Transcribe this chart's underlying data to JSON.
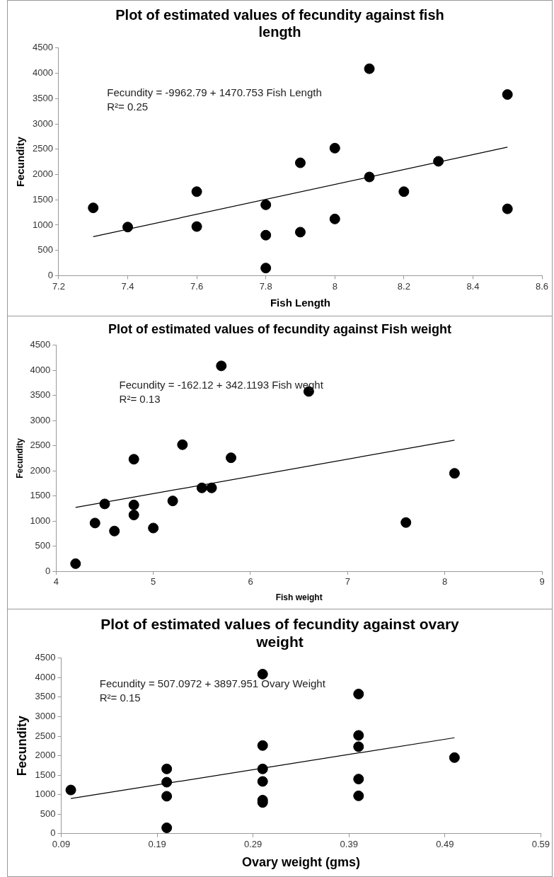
{
  "chart_data": [
    {
      "type": "scatter",
      "title": "Plot of estimated values of fecundity against fish length",
      "xlabel": "Fish Length",
      "ylabel": "Fecundity",
      "annotations": [
        "Fecundity = -9962.79 + 1470.753 Fish Length",
        "R²= 0.25"
      ],
      "xlim": [
        7.2,
        8.6
      ],
      "xticks": [
        7.2,
        7.4,
        7.6,
        7.8,
        8,
        8.2,
        8.4,
        8.6
      ],
      "ylim": [
        0,
        4500
      ],
      "yticks": [
        0,
        500,
        1000,
        1500,
        2000,
        2500,
        3000,
        3500,
        4000,
        4500
      ],
      "series": [
        {
          "marker": "circle",
          "color": "#000000",
          "x": [
            7.3,
            7.4,
            7.6,
            7.6,
            7.8,
            7.8,
            7.8,
            7.9,
            7.9,
            8.0,
            8.0,
            8.1,
            8.1,
            8.2,
            8.3,
            8.5,
            8.5
          ],
          "values": [
            1340,
            960,
            1660,
            970,
            1400,
            800,
            150,
            2230,
            860,
            2520,
            1120,
            4090,
            1950,
            1660,
            2260,
            3580,
            1320
          ]
        },
        {
          "type": "line",
          "marker": "none",
          "color": "#000000",
          "x": [
            7.3,
            8.5
          ],
          "values": [
            770,
            2540
          ]
        }
      ]
    },
    {
      "type": "scatter",
      "title": "Plot of estimated values of fecundity against Fish weight",
      "xlabel": "Fish weight",
      "ylabel": "Fecundity",
      "annotations": [
        "Fecundity = -162.12 + 342.1193 Fish weght",
        "R²= 0.13"
      ],
      "xlim": [
        4,
        9
      ],
      "xticks": [
        4,
        5,
        6,
        7,
        8,
        9
      ],
      "ylim": [
        0,
        4500
      ],
      "yticks": [
        0,
        500,
        1000,
        1500,
        2000,
        2500,
        3000,
        3500,
        4000,
        4500
      ],
      "series": [
        {
          "marker": "circle",
          "color": "#000000",
          "x": [
            4.2,
            4.4,
            4.5,
            4.6,
            4.8,
            4.8,
            4.8,
            5.0,
            5.2,
            5.3,
            5.5,
            5.6,
            5.7,
            5.8,
            6.6,
            7.6,
            8.1
          ],
          "values": [
            150,
            960,
            1340,
            800,
            2230,
            1320,
            1120,
            860,
            1400,
            2520,
            1660,
            1660,
            4090,
            2260,
            3580,
            970,
            1950
          ]
        },
        {
          "type": "line",
          "marker": "none",
          "color": "#000000",
          "x": [
            4.2,
            8.1
          ],
          "values": [
            1270,
            2610
          ]
        }
      ]
    },
    {
      "type": "scatter",
      "title": "Plot of estimated values of fecundity against ovary weight",
      "xlabel": "Ovary weight (gms)",
      "ylabel": "Fecundity",
      "annotations": [
        "Fecundity = 507.0972 + 3897.951 Ovary Weight",
        "R²= 0.15"
      ],
      "xlim": [
        0.09,
        0.59
      ],
      "xticks": [
        0.09,
        0.19,
        0.29,
        0.39,
        0.49,
        0.59
      ],
      "ylim": [
        0,
        4500
      ],
      "yticks": [
        0,
        500,
        1000,
        1500,
        2000,
        2500,
        3000,
        3500,
        4000,
        4500
      ],
      "series": [
        {
          "marker": "circle",
          "color": "#000000",
          "x": [
            0.1,
            0.2,
            0.2,
            0.2,
            0.2,
            0.3,
            0.3,
            0.3,
            0.3,
            0.3,
            0.3,
            0.4,
            0.4,
            0.4,
            0.4,
            0.4,
            0.5
          ],
          "values": [
            1120,
            1660,
            1320,
            960,
            150,
            4090,
            2260,
            1660,
            1340,
            860,
            800,
            3580,
            2520,
            2230,
            1400,
            970,
            1950
          ]
        },
        {
          "type": "line",
          "marker": "none",
          "color": "#000000",
          "x": [
            0.1,
            0.5
          ],
          "values": [
            900,
            2460
          ]
        }
      ]
    }
  ]
}
